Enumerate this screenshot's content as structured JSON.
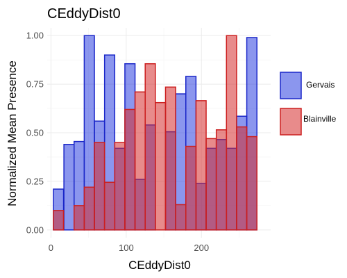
{
  "chart_data": {
    "type": "bar",
    "title": "CEddyDist0",
    "xlabel": "CEddyDist0",
    "ylabel": "Normalized Mean Presence",
    "xlim": [
      -5,
      292
    ],
    "ylim": [
      -0.04,
      1.04
    ],
    "x_ticks": [
      0,
      100,
      200
    ],
    "x_tick_labels": [
      "0",
      "100",
      "200"
    ],
    "y_ticks": [
      0,
      0.25,
      0.5,
      0.75,
      1.0
    ],
    "y_tick_labels": [
      "0.00",
      "0.25",
      "0.50",
      "0.75",
      "1.00"
    ],
    "bin_width": 13.5,
    "grid": true,
    "legend_position": "right",
    "x": [
      10,
      24,
      37.5,
      51,
      64.5,
      78,
      91.5,
      105,
      118.5,
      132,
      145.5,
      159,
      172.5,
      186,
      199.5,
      213,
      226.5,
      240,
      253.5,
      267
    ],
    "series": [
      {
        "name": "Gervais",
        "fill": "#2c3fe0",
        "stroke": "#1a26c8",
        "values": [
          0.21,
          0.44,
          0.455,
          1.0,
          0.56,
          0.9,
          0.42,
          0.855,
          0.26,
          0.54,
          0.0,
          0.505,
          0.7,
          0.79,
          0.24,
          0.42,
          0.465,
          0.42,
          0.585,
          0.99
        ]
      },
      {
        "name": "Blainville",
        "fill": "#d62b2b",
        "stroke": "#cc1f1f",
        "values": [
          0.1,
          0.0,
          0.125,
          0.22,
          0.45,
          0.245,
          0.45,
          0.62,
          0.71,
          0.855,
          0.655,
          0.735,
          0.13,
          0.43,
          0.665,
          0.47,
          0.515,
          1.0,
          0.53,
          0.48
        ]
      }
    ]
  }
}
